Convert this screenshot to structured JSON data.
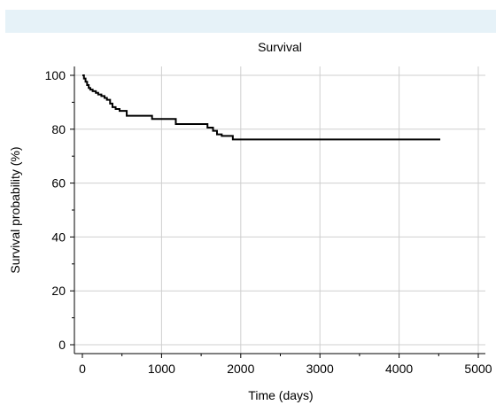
{
  "chart_data": {
    "type": "line",
    "title": "Survival",
    "xlabel": "Time (days)",
    "ylabel": "Survival probability (%)",
    "xlim": [
      0,
      5000
    ],
    "ylim": [
      0,
      100
    ],
    "x_ticks": [
      0,
      1000,
      2000,
      3000,
      4000,
      5000
    ],
    "y_ticks": [
      0,
      20,
      40,
      60,
      80,
      100
    ],
    "grid": true,
    "step": true,
    "series": [
      {
        "color": "#000000",
        "x": [
          0,
          20,
          40,
          60,
          80,
          100,
          130,
          170,
          200,
          240,
          280,
          310,
          350,
          380,
          420,
          470,
          560,
          880,
          1180,
          1580,
          1650,
          1700,
          1760,
          1900,
          4520
        ],
        "y": [
          100,
          98.8,
          97.6,
          96.4,
          95.3,
          94.7,
          94.1,
          93.5,
          92.9,
          92.3,
          91.6,
          90.9,
          89.5,
          88.2,
          87.5,
          86.8,
          85.0,
          83.8,
          81.9,
          80.6,
          79.4,
          78.1,
          77.5,
          76.2,
          76.2
        ]
      }
    ]
  }
}
